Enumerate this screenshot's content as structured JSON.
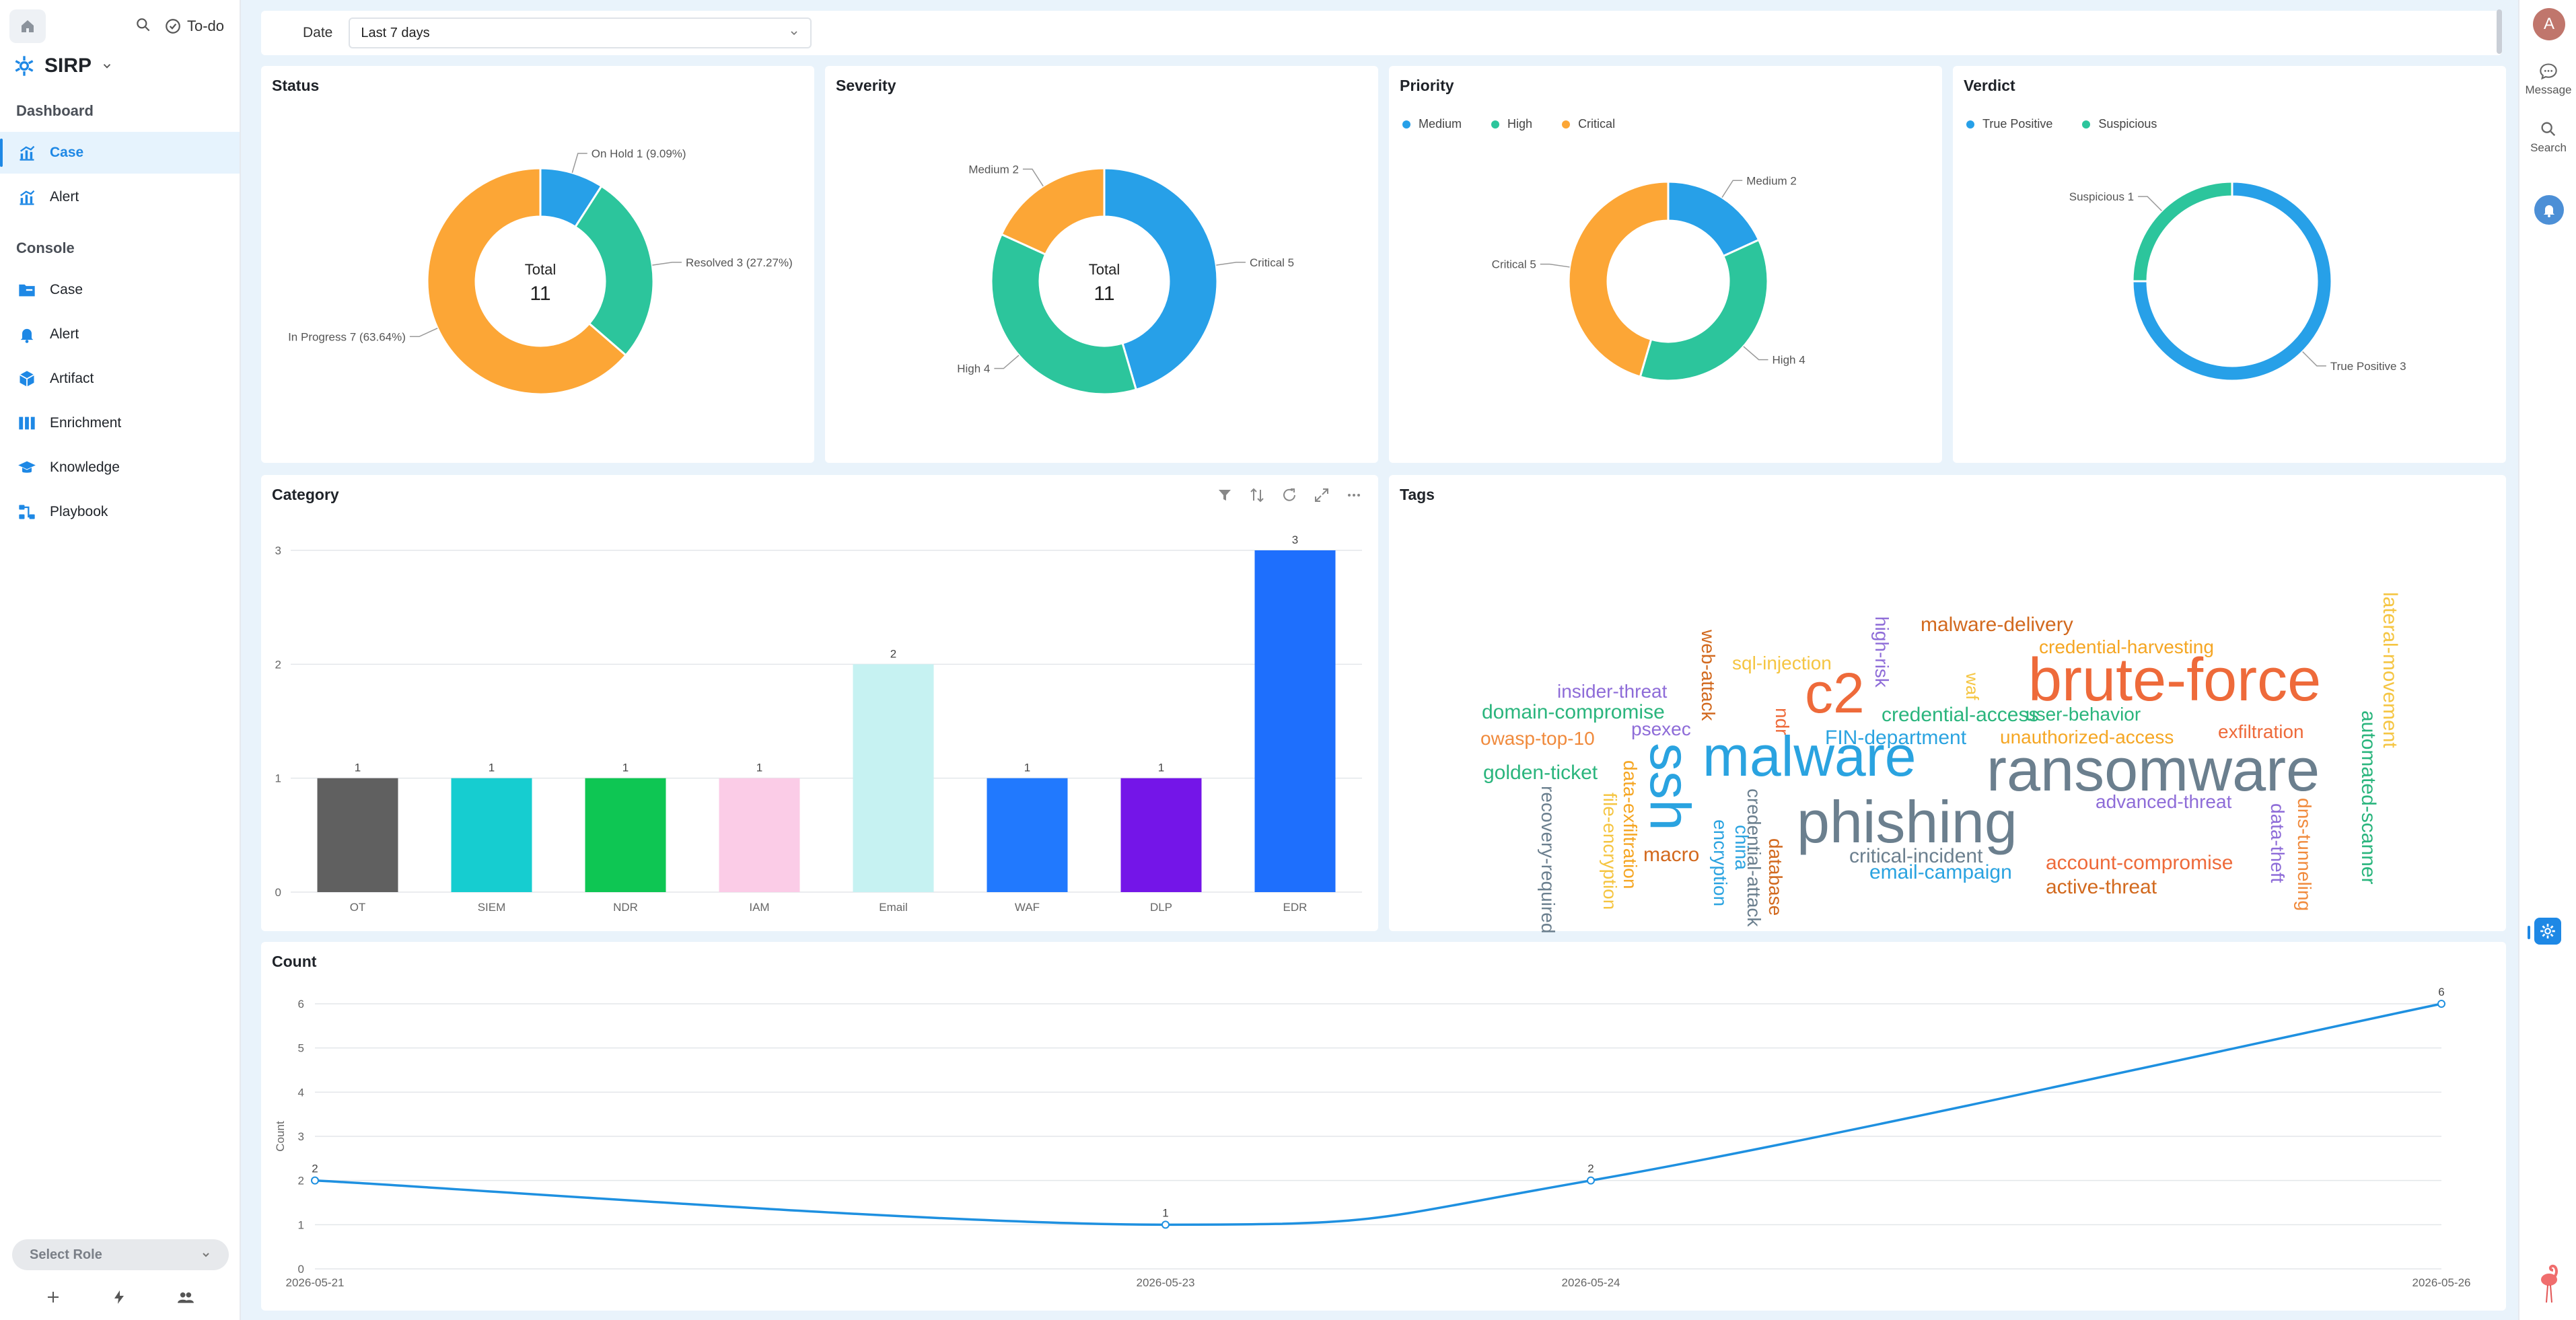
{
  "sidebar": {
    "todo_label": "To-do",
    "brand": "SIRP",
    "sections": {
      "dashboard": "Dashboard",
      "console": "Console"
    },
    "dashboard_items": [
      {
        "label": "Case",
        "icon": "chart-icon",
        "active": true
      },
      {
        "label": "Alert",
        "icon": "chart-icon",
        "active": false
      }
    ],
    "console_items": [
      {
        "label": "Case",
        "icon": "folder-icon"
      },
      {
        "label": "Alert",
        "icon": "bell-icon"
      },
      {
        "label": "Artifact",
        "icon": "cube-icon"
      },
      {
        "label": "Enrichment",
        "icon": "columns-icon"
      },
      {
        "label": "Knowledge",
        "icon": "graduation-cap-icon"
      },
      {
        "label": "Playbook",
        "icon": "flow-icon"
      }
    ],
    "role_select": "Select Role"
  },
  "rail": {
    "avatar": "A",
    "message": "Message",
    "search": "Search"
  },
  "filter": {
    "label": "Date",
    "value": "Last 7 days"
  },
  "colors": {
    "blue": "#27a0e8",
    "green": "#2cc59c",
    "orange": "#fca636",
    "accent": "#1e88e5"
  },
  "cards": {
    "status": "Status",
    "severity": "Severity",
    "priority": "Priority",
    "verdict": "Verdict",
    "category": "Category",
    "tags": "Tags",
    "count": "Count"
  },
  "chart_data": [
    {
      "type": "pie",
      "title": "Status",
      "center_label": "Total",
      "center_value": "11",
      "slices": [
        {
          "name": "On Hold",
          "value": 1,
          "label": "On Hold  1 (9.09%)",
          "color": "#27a0e8"
        },
        {
          "name": "Resolved",
          "value": 3,
          "label": "Resolved  3 (27.27%)",
          "color": "#2cc59c"
        },
        {
          "name": "In Progress",
          "value": 7,
          "label": "In Progress  7 (63.64%)",
          "color": "#fca636"
        }
      ]
    },
    {
      "type": "pie",
      "title": "Severity",
      "center_label": "Total",
      "center_value": "11",
      "slices": [
        {
          "name": "Critical",
          "value": 5,
          "label": "Critical  5",
          "color": "#27a0e8"
        },
        {
          "name": "High",
          "value": 4,
          "label": "High  4",
          "color": "#2cc59c"
        },
        {
          "name": "Medium",
          "value": 2,
          "label": "Medium  2",
          "color": "#fca636"
        }
      ]
    },
    {
      "type": "pie",
      "title": "Priority",
      "legend": [
        "Medium",
        "High",
        "Critical"
      ],
      "slices": [
        {
          "name": "Medium",
          "value": 2,
          "label": "Medium  2",
          "color": "#27a0e8"
        },
        {
          "name": "High",
          "value": 4,
          "label": "High  4",
          "color": "#2cc59c"
        },
        {
          "name": "Critical",
          "value": 5,
          "label": "Critical  5",
          "color": "#fca636"
        }
      ]
    },
    {
      "type": "pie",
      "title": "Verdict",
      "legend": [
        "True Positive",
        "Suspicious"
      ],
      "slices": [
        {
          "name": "True Positive",
          "value": 3,
          "label": "True Positive  3",
          "color": "#27a0e8"
        },
        {
          "name": "Suspicious",
          "value": 1,
          "label": "Suspicious  1",
          "color": "#2cc59c"
        }
      ]
    },
    {
      "type": "bar",
      "title": "Category",
      "categories": [
        "OT",
        "SIEM",
        "NDR",
        "IAM",
        "Email",
        "WAF",
        "DLP",
        "EDR"
      ],
      "values": [
        1,
        1,
        1,
        1,
        2,
        1,
        1,
        3
      ],
      "colors": [
        "#606060",
        "#16cdd0",
        "#0ec653",
        "#fbcce7",
        "#c6f2f2",
        "#2179fe",
        "#7415e8",
        "#1e6ffd"
      ],
      "ylim": [
        0,
        3
      ],
      "yticks": [
        "0",
        "1",
        "2",
        "3"
      ]
    },
    {
      "type": "line",
      "title": "Count",
      "ylabel": "Count",
      "x": [
        "2026-05-21",
        "2026-05-23",
        "2026-05-24",
        "2026-05-26"
      ],
      "values": [
        2,
        1,
        2,
        6
      ],
      "ylim": [
        0,
        6
      ],
      "yticks": [
        "0",
        "1",
        "2",
        "3",
        "4",
        "5",
        "6"
      ]
    }
  ],
  "tags_cloud": [
    {
      "text": "brute-force",
      "color": "#ee6a3a"
    },
    {
      "text": "ransomware",
      "color": "#6b7f8e"
    },
    {
      "text": "malware",
      "color": "#2aa3e0"
    },
    {
      "text": "phishing",
      "color": "#6b7f8e"
    },
    {
      "text": "c2",
      "color": "#ee6a3a"
    },
    {
      "text": "ssh",
      "color": "#2aa3e0"
    },
    {
      "text": "malware-delivery",
      "color": "#d2691e"
    },
    {
      "text": "credential-harvesting",
      "color": "#f5a623"
    },
    {
      "text": "lateral-movement",
      "color": "#f5c542"
    },
    {
      "text": "sql-injection",
      "color": "#f5c542"
    },
    {
      "text": "high-risk",
      "color": "#8e6cd8"
    },
    {
      "text": "web-attack",
      "color": "#d2691e"
    },
    {
      "text": "insider-threat",
      "color": "#8e6cd8"
    },
    {
      "text": "domain-compromise",
      "color": "#2ab57d"
    },
    {
      "text": "psexec",
      "color": "#8e6cd8"
    },
    {
      "text": "owasp-top-10",
      "color": "#f08a3c"
    },
    {
      "text": "ndr",
      "color": "#ee6a3a"
    },
    {
      "text": "credential-access",
      "color": "#2ab57d"
    },
    {
      "text": "user-behavior",
      "color": "#2ab57d"
    },
    {
      "text": "waf",
      "color": "#f5c542"
    },
    {
      "text": "FIN-department",
      "color": "#2aa3e0"
    },
    {
      "text": "unauthorized-access",
      "color": "#f5a623"
    },
    {
      "text": "exfiltration",
      "color": "#ee6a3a"
    },
    {
      "text": "automated-scanner",
      "color": "#2ab57d"
    },
    {
      "text": "golden-ticket",
      "color": "#2ab57d"
    },
    {
      "text": "data-exfiltration",
      "color": "#f5a623"
    },
    {
      "text": "file-encryption",
      "color": "#f5c542"
    },
    {
      "text": "recovery-required",
      "color": "#6b7f8e"
    },
    {
      "text": "advanced-threat",
      "color": "#8e6cd8"
    },
    {
      "text": "data-theft",
      "color": "#8e6cd8"
    },
    {
      "text": "dns-tunneling",
      "color": "#f08a3c"
    },
    {
      "text": "macro",
      "color": "#d2691e"
    },
    {
      "text": "china",
      "color": "#2aa3e0"
    },
    {
      "text": "encryption",
      "color": "#2aa3e0"
    },
    {
      "text": "credential-attack",
      "color": "#6b7f8e"
    },
    {
      "text": "database",
      "color": "#d2691e"
    },
    {
      "text": "critical-incident",
      "color": "#6b7f8e"
    },
    {
      "text": "email-campaign",
      "color": "#2aa3e0"
    },
    {
      "text": "account-compromise",
      "color": "#ee6a3a"
    },
    {
      "text": "active-threat",
      "color": "#d2691e"
    }
  ]
}
